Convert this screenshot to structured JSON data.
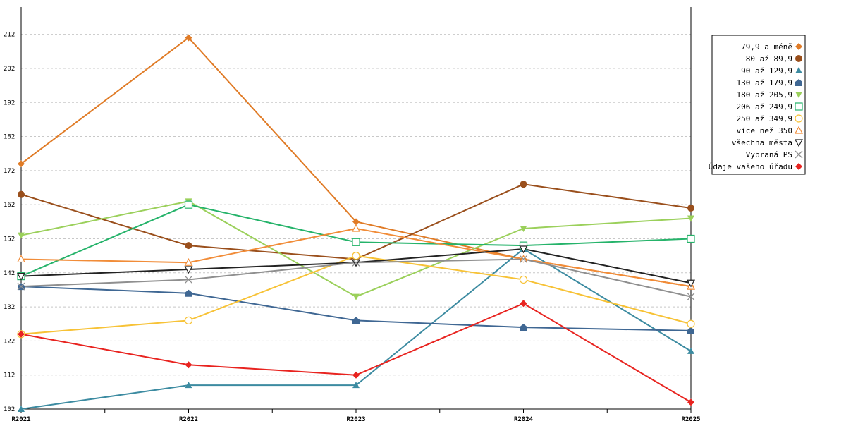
{
  "chart_data": {
    "type": "line",
    "title": "",
    "xlabel": "",
    "ylabel": "",
    "categories": [
      "R2021",
      "R2022",
      "R2023",
      "R2024",
      "R2025"
    ],
    "ylim": [
      102,
      220
    ],
    "yticks": [
      102,
      112,
      122,
      132,
      142,
      152,
      162,
      172,
      182,
      192,
      202,
      212
    ],
    "grid": true,
    "legend_position": "right",
    "series": [
      {
        "name": "79,9 a méně",
        "color": "#e07b26",
        "marker": "diamond",
        "values": [
          174,
          211,
          157,
          146,
          138
        ]
      },
      {
        "name": "80 až 89,9",
        "color": "#9a4f1c",
        "marker": "circle",
        "values": [
          165,
          150,
          146,
          168,
          161
        ]
      },
      {
        "name": "90 až 129,9",
        "color": "#3c8ba1",
        "marker": "triangle",
        "values": [
          102,
          109,
          109,
          149,
          119
        ]
      },
      {
        "name": "130 až 179,9",
        "color": "#3f6793",
        "marker": "house",
        "values": [
          138,
          136,
          128,
          126,
          125
        ]
      },
      {
        "name": "180 až 205,9",
        "color": "#9bd05b",
        "marker": "triangle-down",
        "values": [
          153,
          163,
          135,
          155,
          158
        ]
      },
      {
        "name": "206 až 249,9",
        "color": "#25b36a",
        "marker": "square-open",
        "values": [
          141,
          162,
          151,
          150,
          152
        ]
      },
      {
        "name": "250 až 349,9",
        "color": "#f7c236",
        "marker": "circle-open",
        "values": [
          124,
          128,
          147,
          140,
          127
        ]
      },
      {
        "name": "více než 350",
        "color": "#f18c38",
        "marker": "triangle-open",
        "values": [
          146,
          145,
          155,
          146,
          138
        ]
      },
      {
        "name": "všechna města",
        "color": "#222222",
        "marker": "triangle-down-open",
        "values": [
          141,
          143,
          145,
          149,
          139
        ]
      },
      {
        "name": "Vybraná PS",
        "color": "#8f8f8f",
        "marker": "x",
        "values": [
          138,
          140,
          145,
          146,
          135
        ]
      },
      {
        "name": "Údaje vašeho úřadu",
        "color": "#e8231f",
        "marker": "diamond",
        "values": [
          124,
          115,
          112,
          133,
          104
        ]
      }
    ]
  }
}
